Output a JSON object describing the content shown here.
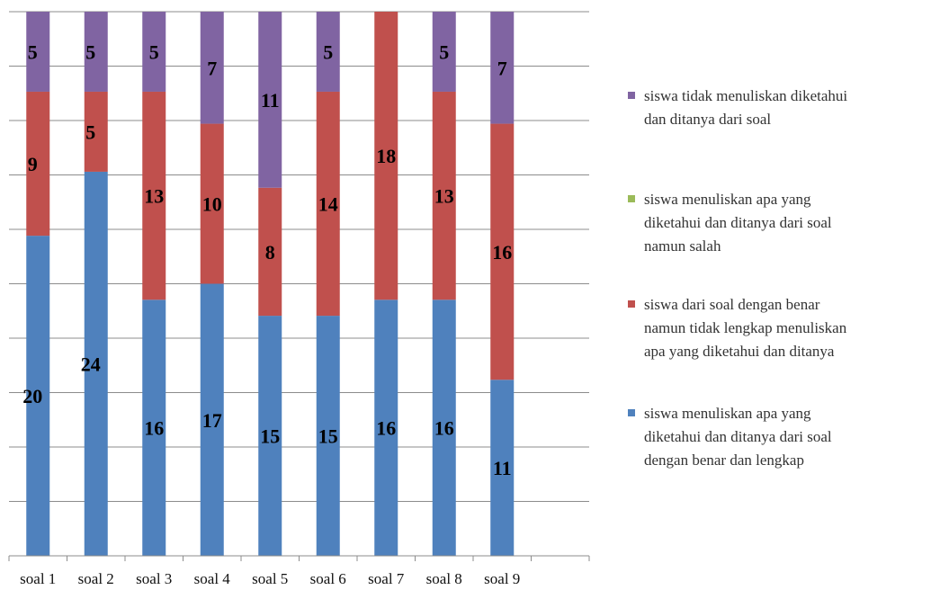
{
  "chart_data": {
    "type": "bar",
    "stacked": true,
    "categories": [
      "soal 1",
      "soal 2",
      "soal 3",
      "soal 4",
      "soal 5",
      "soal 6",
      "soal 7",
      "soal 8",
      "soal 9"
    ],
    "series": [
      {
        "name": "siswa menuliskan apa yang diketahui dan ditanya dari soal dengan benar dan lengkap",
        "legend_lines": [
          "siswa menuliskan apa yang",
          "diketahui dan ditanya dari soal",
          "dengan benar dan lengkap"
        ],
        "color": "#4F81BD",
        "values": [
          20,
          24,
          16,
          17,
          15,
          15,
          16,
          16,
          11
        ]
      },
      {
        "name": "siswa  dari soal dengan benar namun tidak lengkap menuliskan apa yang diketahui dan ditanya",
        "legend_lines": [
          "siswa  dari soal dengan benar",
          "namun tidak lengkap menuliskan",
          "apa yang diketahui dan ditanya"
        ],
        "color": "#C0504D",
        "values": [
          9,
          5,
          13,
          10,
          8,
          14,
          18,
          13,
          16
        ]
      },
      {
        "name": "siswa menuliskan apa yang diketahui dan ditanya dari soal namun salah",
        "legend_lines": [
          "siswa menuliskan apa yang",
          "diketahui dan ditanya dari soal",
          "namun salah"
        ],
        "color": "#9BBB59",
        "values": [
          0,
          0,
          0,
          0,
          0,
          0,
          0,
          0,
          0
        ]
      },
      {
        "name": "siswa tidak menuliskan diketahui dan ditanya dari soal",
        "legend_lines": [
          "siswa tidak menuliskan diketahui",
          "dan ditanya dari soal"
        ],
        "color": "#8064A2",
        "values": [
          5,
          5,
          5,
          7,
          11,
          5,
          0,
          5,
          7
        ]
      }
    ],
    "ylim": [
      0,
      34
    ],
    "legend_position": "right",
    "grid": true
  }
}
